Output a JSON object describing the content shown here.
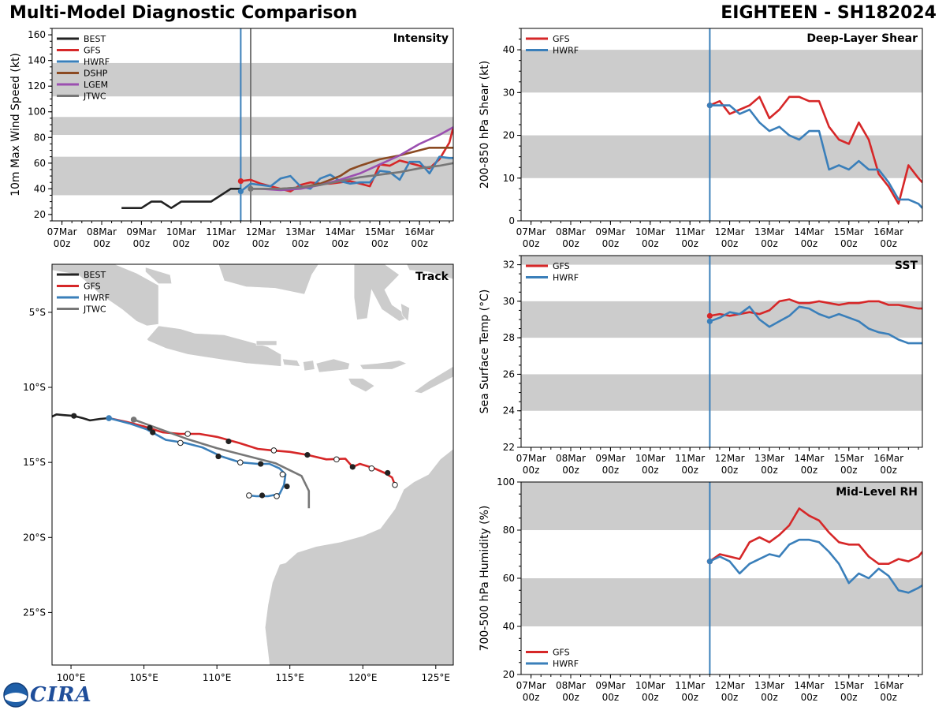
{
  "header": {
    "title_left": "Multi-Model Diagnostic Comparison",
    "title_right": "EIGHTEEN - SH182024"
  },
  "logo": {
    "text": "CIRA",
    "seal_text": "NOAA"
  },
  "colors": {
    "BEST": "#222222",
    "GFS": "#d62728",
    "HWRF": "#3a7fba",
    "DSHP": "#8b4a22",
    "LGEM": "#9b4fb0",
    "JTWC": "#777777",
    "band": "#cccccc",
    "land": "#cccccc",
    "vline": "#3a7fba"
  },
  "time_ticks": [
    "07Mar\n00z",
    "08Mar\n00z",
    "09Mar\n00z",
    "10Mar\n00z",
    "11Mar\n00z",
    "12Mar\n00z",
    "13Mar\n00z",
    "14Mar\n00z",
    "15Mar\n00z",
    "16Mar\n00z"
  ],
  "chart_data": [
    {
      "id": "intensity",
      "type": "line",
      "title": "Intensity",
      "ylabel": "10m Max Wind Speed (kt)",
      "xlim": [
        -0.25,
        9.85
      ],
      "ylim": [
        15,
        165
      ],
      "yticks": [
        20,
        40,
        60,
        80,
        100,
        120,
        140,
        160
      ],
      "bands": [
        [
          35,
          65
        ],
        [
          82,
          96
        ],
        [
          112,
          138
        ]
      ],
      "vlines": [
        {
          "x": 4.5,
          "color": "#3a7fba"
        },
        {
          "x": 4.75,
          "color": "#777777"
        }
      ],
      "legend": [
        "BEST",
        "GFS",
        "HWRF",
        "DSHP",
        "LGEM",
        "JTWC"
      ],
      "legend_loc": "upper-left",
      "series": [
        {
          "name": "BEST",
          "x": [
            1.5,
            1.75,
            2.0,
            2.25,
            2.5,
            2.75,
            3.0,
            3.25,
            3.5,
            3.75,
            4.0,
            4.25,
            4.5
          ],
          "y": [
            25,
            25,
            25,
            30,
            30,
            25,
            30,
            30,
            30,
            30,
            35,
            40,
            40
          ]
        },
        {
          "name": "GFS",
          "x": [
            4.5,
            4.75,
            5.0,
            5.25,
            5.5,
            5.75,
            6.0,
            6.25,
            6.5,
            6.75,
            7.0,
            7.25,
            7.5,
            7.75,
            8.0,
            8.25,
            8.5,
            8.75,
            9.0,
            9.25,
            9.5,
            9.75,
            9.85
          ],
          "y": [
            46,
            47,
            44,
            42,
            40,
            38,
            43,
            45,
            44,
            44,
            45,
            46,
            44,
            42,
            59,
            58,
            62,
            60,
            58,
            56,
            63,
            76,
            88
          ],
          "start_marker": true
        },
        {
          "name": "HWRF",
          "x": [
            4.5,
            4.75,
            5.0,
            5.25,
            5.5,
            5.75,
            6.0,
            6.25,
            6.5,
            6.75,
            7.0,
            7.25,
            7.5,
            7.75,
            8.0,
            8.25,
            8.5,
            8.75,
            9.0,
            9.25,
            9.5,
            9.75,
            9.85
          ],
          "y": [
            38,
            44,
            43,
            42,
            48,
            50,
            42,
            40,
            48,
            51,
            46,
            44,
            45,
            45,
            54,
            53,
            47,
            61,
            61,
            52,
            65,
            64,
            64
          ],
          "start_marker": true
        },
        {
          "name": "DSHP",
          "x": [
            4.75,
            5.0,
            5.5,
            6.0,
            6.5,
            7.0,
            7.25,
            7.5,
            8.0,
            8.5,
            9.0,
            9.25,
            9.5,
            9.85
          ],
          "y": [
            40,
            40,
            40,
            41,
            44,
            50,
            55,
            58,
            63,
            66,
            70,
            72,
            72,
            72
          ]
        },
        {
          "name": "LGEM",
          "x": [
            4.75,
            5.0,
            5.5,
            6.0,
            6.5,
            7.0,
            7.5,
            8.0,
            8.5,
            9.0,
            9.5,
            9.85
          ],
          "y": [
            40,
            40,
            39,
            40,
            43,
            47,
            52,
            59,
            66,
            75,
            82,
            88
          ]
        },
        {
          "name": "JTWC",
          "x": [
            4.75,
            5.0,
            5.5,
            6.0,
            6.5,
            7.0,
            7.5,
            8.0,
            8.5,
            9.0,
            9.5,
            9.85
          ],
          "y": [
            40,
            40,
            40,
            41,
            43,
            46,
            49,
            51,
            53,
            56,
            58,
            60
          ],
          "start_marker": true
        }
      ]
    },
    {
      "id": "shear",
      "type": "line",
      "title": "Deep-Layer Shear",
      "ylabel": "200-850 hPa Shear (kt)",
      "xlim": [
        -0.25,
        9.85
      ],
      "ylim": [
        0,
        45
      ],
      "yticks": [
        0,
        10,
        20,
        30,
        40
      ],
      "bands": [
        [
          10,
          20
        ],
        [
          30,
          40
        ]
      ],
      "vlines": [
        {
          "x": 4.5,
          "color": "#3a7fba"
        }
      ],
      "legend": [
        "GFS",
        "HWRF"
      ],
      "legend_loc": "upper-left",
      "series": [
        {
          "name": "GFS",
          "x": [
            4.5,
            4.75,
            5.0,
            5.25,
            5.5,
            5.75,
            6.0,
            6.25,
            6.5,
            6.75,
            7.0,
            7.25,
            7.5,
            7.75,
            8.0,
            8.25,
            8.5,
            8.75,
            9.0,
            9.25,
            9.5,
            9.75,
            9.85
          ],
          "y": [
            27,
            28,
            25,
            26,
            27,
            29,
            24,
            26,
            29,
            29,
            28,
            28,
            22,
            19,
            18,
            23,
            19,
            11,
            8,
            4,
            13,
            10,
            9
          ],
          "start_marker": true
        },
        {
          "name": "HWRF",
          "x": [
            4.5,
            4.75,
            5.0,
            5.25,
            5.5,
            5.75,
            6.0,
            6.25,
            6.5,
            6.75,
            7.0,
            7.25,
            7.5,
            7.75,
            8.0,
            8.25,
            8.5,
            8.75,
            9.0,
            9.25,
            9.5,
            9.75,
            9.85
          ],
          "y": [
            27,
            27,
            27,
            25,
            26,
            23,
            21,
            22,
            20,
            19,
            21,
            21,
            12,
            13,
            12,
            14,
            12,
            12,
            9,
            5,
            5,
            4,
            3
          ],
          "start_marker": true
        }
      ]
    },
    {
      "id": "sst",
      "type": "line",
      "title": "SST",
      "ylabel": "Sea Surface Temp (°C)",
      "xlim": [
        -0.25,
        9.85
      ],
      "ylim": [
        22,
        32.5
      ],
      "yticks": [
        22,
        24,
        26,
        28,
        30,
        32
      ],
      "bands": [
        [
          24,
          26
        ],
        [
          28,
          30
        ],
        [
          32,
          32.5
        ]
      ],
      "vlines": [
        {
          "x": 4.5,
          "color": "#3a7fba"
        }
      ],
      "legend": [
        "GFS",
        "HWRF"
      ],
      "legend_loc": "upper-left",
      "series": [
        {
          "name": "GFS",
          "x": [
            4.5,
            4.75,
            5.0,
            5.25,
            5.5,
            5.75,
            6.0,
            6.25,
            6.5,
            6.75,
            7.0,
            7.25,
            7.5,
            7.75,
            8.0,
            8.25,
            8.5,
            8.75,
            9.0,
            9.25,
            9.5,
            9.75,
            9.85
          ],
          "y": [
            29.2,
            29.3,
            29.2,
            29.3,
            29.4,
            29.3,
            29.5,
            30.0,
            30.1,
            29.9,
            29.9,
            30.0,
            29.9,
            29.8,
            29.9,
            29.9,
            30.0,
            30.0,
            29.8,
            29.8,
            29.7,
            29.6,
            29.6
          ],
          "start_marker": true
        },
        {
          "name": "HWRF",
          "x": [
            4.5,
            4.75,
            5.0,
            5.25,
            5.5,
            5.75,
            6.0,
            6.25,
            6.5,
            6.75,
            7.0,
            7.25,
            7.5,
            7.75,
            8.0,
            8.25,
            8.5,
            8.75,
            9.0,
            9.25,
            9.5,
            9.75,
            9.85
          ],
          "y": [
            28.9,
            29.1,
            29.4,
            29.3,
            29.7,
            29.0,
            28.6,
            28.9,
            29.2,
            29.7,
            29.6,
            29.3,
            29.1,
            29.3,
            29.1,
            28.9,
            28.5,
            28.3,
            28.2,
            27.9,
            27.7,
            27.7,
            27.7
          ],
          "start_marker": true
        }
      ]
    },
    {
      "id": "rh",
      "type": "line",
      "title": "Mid-Level RH",
      "ylabel": "700-500 hPa Humidity (%)",
      "xlim": [
        -0.25,
        9.85
      ],
      "ylim": [
        20,
        100
      ],
      "yticks": [
        20,
        40,
        60,
        80,
        100
      ],
      "bands": [
        [
          40,
          60
        ],
        [
          80,
          100
        ]
      ],
      "vlines": [
        {
          "x": 4.5,
          "color": "#3a7fba"
        }
      ],
      "legend": [
        "GFS",
        "HWRF"
      ],
      "legend_loc": "lower-left",
      "series": [
        {
          "name": "GFS",
          "x": [
            4.5,
            4.75,
            5.0,
            5.25,
            5.5,
            5.75,
            6.0,
            6.25,
            6.5,
            6.75,
            7.0,
            7.25,
            7.5,
            7.75,
            8.0,
            8.25,
            8.5,
            8.75,
            9.0,
            9.25,
            9.5,
            9.75,
            9.85
          ],
          "y": [
            67,
            70,
            69,
            68,
            75,
            77,
            75,
            78,
            82,
            89,
            86,
            84,
            79,
            75,
            74,
            74,
            69,
            66,
            66,
            68,
            67,
            69,
            71
          ],
          "start_marker": true
        },
        {
          "name": "HWRF",
          "x": [
            4.5,
            4.75,
            5.0,
            5.25,
            5.5,
            5.75,
            6.0,
            6.25,
            6.5,
            6.75,
            7.0,
            7.25,
            7.5,
            7.75,
            8.0,
            8.25,
            8.5,
            8.75,
            9.0,
            9.25,
            9.5,
            9.75,
            9.85
          ],
          "y": [
            67,
            69,
            67,
            62,
            66,
            68,
            70,
            69,
            74,
            76,
            76,
            75,
            71,
            66,
            58,
            62,
            60,
            64,
            61,
            55,
            54,
            56,
            57
          ],
          "start_marker": true
        }
      ]
    },
    {
      "id": "track",
      "type": "scatter",
      "title": "Track",
      "xlim": [
        98.7,
        126.2
      ],
      "ylim": [
        -28.5,
        -1.8
      ],
      "xticks": [
        100,
        105,
        110,
        115,
        120,
        125
      ],
      "xtick_labels": [
        "100°E",
        "105°E",
        "110°E",
        "115°E",
        "120°E",
        "125°E"
      ],
      "yticks": [
        -5,
        -10,
        -15,
        -20,
        -25
      ],
      "ytick_labels": [
        "5°S",
        "10°S",
        "15°S",
        "20°S",
        "25°S"
      ],
      "legend": [
        "BEST",
        "GFS",
        "HWRF",
        "JTWC"
      ],
      "legend_loc": "upper-left",
      "series": [
        {
          "name": "BEST",
          "lon": [
            98.7,
            99.0,
            99.5,
            100.2,
            100.8,
            101.3,
            102.0,
            102.6
          ],
          "lat": [
            -11.95,
            -11.8,
            -11.85,
            -11.9,
            -12.05,
            -12.2,
            -12.1,
            -12.05
          ],
          "dots_filled": [
            [
              100.2,
              -11.9
            ],
            [
              102.6,
              -12.05
            ]
          ]
        },
        {
          "name": "GFS",
          "lon": [
            102.6,
            103.8,
            105.0,
            106.3,
            107.5,
            108.8,
            110.0,
            111.5,
            112.8,
            113.8,
            115.0,
            116.2,
            117.5,
            118.8,
            119.3,
            119.8,
            120.8,
            121.5,
            122.0,
            122.2
          ],
          "lat": [
            -12.05,
            -12.3,
            -12.6,
            -13.0,
            -13.1,
            -13.1,
            -13.3,
            -13.7,
            -14.1,
            -14.2,
            -14.3,
            -14.5,
            -14.8,
            -14.75,
            -15.3,
            -15.1,
            -15.4,
            -15.7,
            -16.0,
            -16.5
          ],
          "dots_open": [
            [
              108.0,
              -13.1
            ],
            [
              113.9,
              -14.2
            ],
            [
              118.2,
              -14.8
            ],
            [
              120.6,
              -15.4
            ],
            [
              122.2,
              -16.5
            ]
          ],
          "dots_filled": [
            [
              105.4,
              -12.7
            ],
            [
              110.8,
              -13.6
            ],
            [
              116.2,
              -14.5
            ],
            [
              119.3,
              -15.3
            ],
            [
              121.7,
              -15.7
            ]
          ]
        },
        {
          "name": "HWRF",
          "lon": [
            102.6,
            104.0,
            105.2,
            106.5,
            107.8,
            109.0,
            110.3,
            111.6,
            112.8,
            113.6,
            114.3,
            114.7,
            114.6,
            114.3,
            113.5,
            112.7,
            112.2
          ],
          "lat": [
            -12.05,
            -12.4,
            -12.8,
            -13.5,
            -13.7,
            -14.0,
            -14.6,
            -15.0,
            -15.1,
            -15.1,
            -15.4,
            -15.8,
            -16.5,
            -17.1,
            -17.25,
            -17.25,
            -17.2
          ],
          "dots_open": [
            [
              107.5,
              -13.7
            ],
            [
              111.6,
              -15.0
            ],
            [
              114.5,
              -15.8
            ],
            [
              114.1,
              -17.25
            ],
            [
              112.2,
              -17.2
            ]
          ],
          "dots_filled": [
            [
              105.6,
              -13.0
            ],
            [
              110.1,
              -14.6
            ],
            [
              113.0,
              -15.1
            ],
            [
              114.8,
              -16.6
            ],
            [
              113.1,
              -17.2
            ]
          ]
        },
        {
          "name": "JTWC",
          "lon": [
            104.3,
            106.0,
            108.0,
            110.0,
            112.0,
            114.0,
            115.8,
            116.3,
            116.3
          ],
          "lat": [
            -12.15,
            -12.75,
            -13.45,
            -14.05,
            -14.55,
            -15.05,
            -15.9,
            -16.9,
            -18.05
          ],
          "dots_filled": [
            [
              104.3,
              -12.15
            ]
          ]
        }
      ]
    }
  ]
}
